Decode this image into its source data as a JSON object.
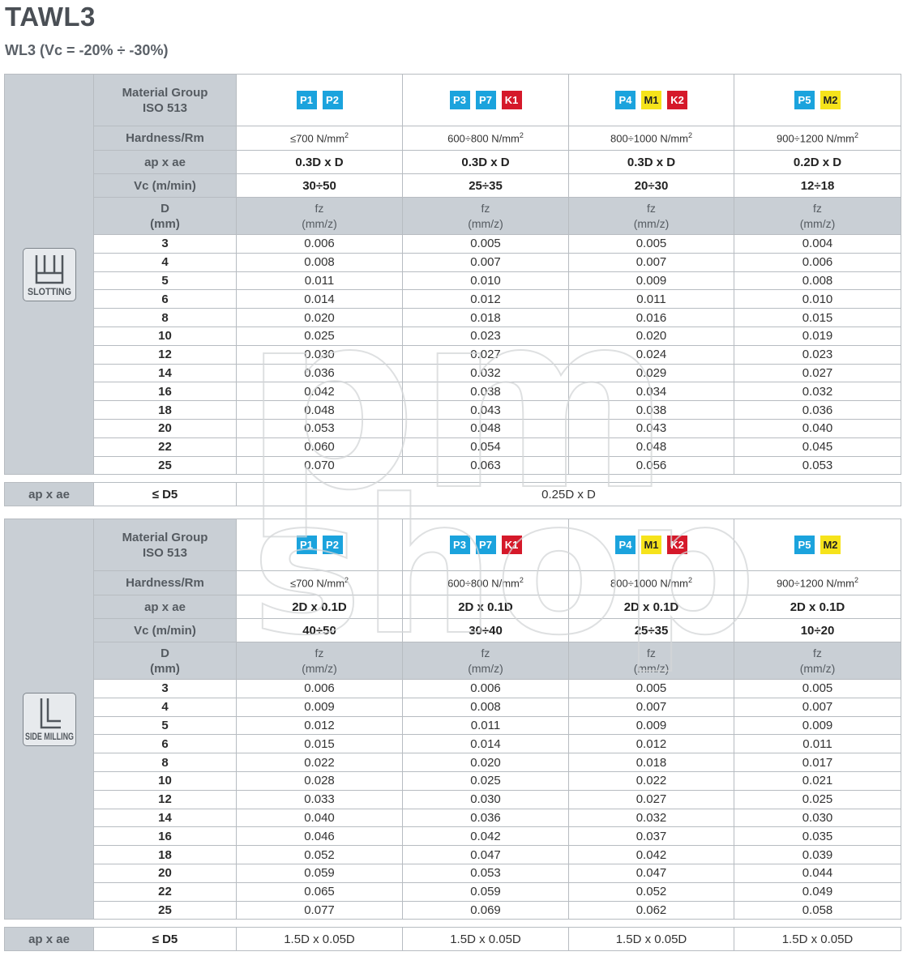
{
  "header": {
    "title": "TAWL3",
    "subtitle": "WL3 (Vc = -20% ÷ -30%)"
  },
  "labels": {
    "material_group": [
      "Material Group",
      "ISO 513"
    ],
    "hardness": "Hardness/Rm",
    "ap_ae": "ap x ae",
    "vc": "Vc (m/min)",
    "d_header": [
      "D",
      "(mm)"
    ],
    "fz_header": [
      "fz",
      "(mm/z)"
    ],
    "footer_d": "≤ D5"
  },
  "colors": {
    "blue": "#1ba3dd",
    "yellow": "#f6e31b",
    "red": "#d5192a",
    "header_gray": "#c9cfd5"
  },
  "groups": [
    {
      "badges": [
        {
          "text": "P1",
          "color": "blue"
        },
        {
          "text": "P2",
          "color": "blue"
        }
      ]
    },
    {
      "badges": [
        {
          "text": "P3",
          "color": "blue"
        },
        {
          "text": "P7",
          "color": "blue"
        },
        {
          "text": "K1",
          "color": "red"
        }
      ]
    },
    {
      "badges": [
        {
          "text": "P4",
          "color": "blue"
        },
        {
          "text": "M1",
          "color": "yellow"
        },
        {
          "text": "K2",
          "color": "red"
        }
      ]
    },
    {
      "badges": [
        {
          "text": "P5",
          "color": "blue"
        },
        {
          "text": "M2",
          "color": "yellow"
        }
      ]
    }
  ],
  "hardness": [
    {
      "pre": "≤700 N/mm",
      "sup": "2"
    },
    {
      "pre": "600÷800 N/mm",
      "sup": "2"
    },
    {
      "pre": "800÷1000 N/mm",
      "sup": "2"
    },
    {
      "pre": "900÷1200 N/mm",
      "sup": "2"
    }
  ],
  "diameters": [
    "3",
    "4",
    "5",
    "6",
    "8",
    "10",
    "12",
    "14",
    "16",
    "18",
    "20",
    "22",
    "25"
  ],
  "operations": [
    {
      "icon": "slotting-icon",
      "name": "SLOTTING",
      "ap_ae": [
        "0.3D x D",
        "0.3D x D",
        "0.3D x D",
        "0.2D x D"
      ],
      "vc": [
        "30÷50",
        "25÷35",
        "20÷30",
        "12÷18"
      ],
      "fz": [
        [
          "0.006",
          "0.005",
          "0.005",
          "0.004"
        ],
        [
          "0.008",
          "0.007",
          "0.007",
          "0.006"
        ],
        [
          "0.011",
          "0.010",
          "0.009",
          "0.008"
        ],
        [
          "0.014",
          "0.012",
          "0.011",
          "0.010"
        ],
        [
          "0.020",
          "0.018",
          "0.016",
          "0.015"
        ],
        [
          "0.025",
          "0.023",
          "0.020",
          "0.019"
        ],
        [
          "0.030",
          "0.027",
          "0.024",
          "0.023"
        ],
        [
          "0.036",
          "0.032",
          "0.029",
          "0.027"
        ],
        [
          "0.042",
          "0.038",
          "0.034",
          "0.032"
        ],
        [
          "0.048",
          "0.043",
          "0.038",
          "0.036"
        ],
        [
          "0.053",
          "0.048",
          "0.043",
          "0.040"
        ],
        [
          "0.060",
          "0.054",
          "0.048",
          "0.045"
        ],
        [
          "0.070",
          "0.063",
          "0.056",
          "0.053"
        ]
      ],
      "footer_values": [
        "0.25D x D"
      ]
    },
    {
      "icon": "side-milling-icon",
      "name": "SIDE MILLING",
      "ap_ae": [
        "2D x 0.1D",
        "2D x 0.1D",
        "2D x 0.1D",
        "2D x 0.1D"
      ],
      "vc": [
        "40÷50",
        "30÷40",
        "25÷35",
        "10÷20"
      ],
      "fz": [
        [
          "0.006",
          "0.006",
          "0.005",
          "0.005"
        ],
        [
          "0.009",
          "0.008",
          "0.007",
          "0.007"
        ],
        [
          "0.012",
          "0.011",
          "0.009",
          "0.009"
        ],
        [
          "0.015",
          "0.014",
          "0.012",
          "0.011"
        ],
        [
          "0.022",
          "0.020",
          "0.018",
          "0.017"
        ],
        [
          "0.028",
          "0.025",
          "0.022",
          "0.021"
        ],
        [
          "0.033",
          "0.030",
          "0.027",
          "0.025"
        ],
        [
          "0.040",
          "0.036",
          "0.032",
          "0.030"
        ],
        [
          "0.046",
          "0.042",
          "0.037",
          "0.035"
        ],
        [
          "0.052",
          "0.047",
          "0.042",
          "0.039"
        ],
        [
          "0.059",
          "0.053",
          "0.047",
          "0.044"
        ],
        [
          "0.065",
          "0.059",
          "0.052",
          "0.049"
        ],
        [
          "0.077",
          "0.069",
          "0.062",
          "0.058"
        ]
      ],
      "footer_values": [
        "1.5D x 0.05D",
        "1.5D x 0.05D",
        "1.5D x 0.05D",
        "1.5D x 0.05D"
      ]
    }
  ],
  "watermark": {
    "line1": "pm",
    "line2": "shop"
  }
}
